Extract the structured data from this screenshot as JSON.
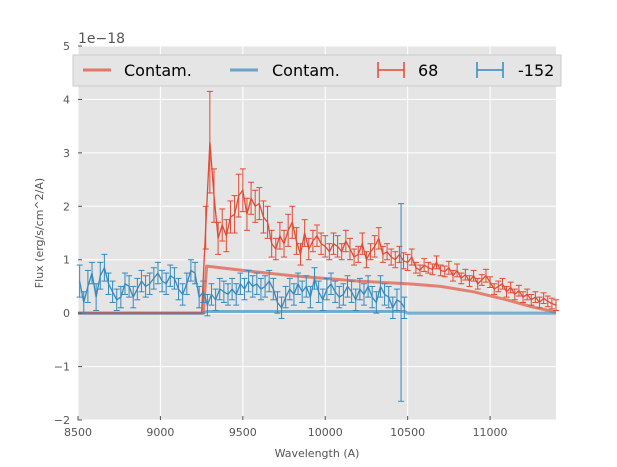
{
  "chart_data": {
    "type": "line",
    "title": "",
    "xlabel": "Wavelength (A)",
    "ylabel": "Flux (erg/s/cm^2/A)",
    "xlim": [
      8500,
      11400
    ],
    "ylim": [
      -2,
      5
    ],
    "x_ticks": [
      8500,
      9000,
      9500,
      10000,
      10500,
      11000
    ],
    "y_ticks": [
      -2,
      -1,
      0,
      1,
      2,
      3,
      4,
      5
    ],
    "x_tick_labels": [
      "8500",
      "9000",
      "9500",
      "10000",
      "10500",
      "11000"
    ],
    "y_tick_labels": [
      "−2",
      "−1",
      "0",
      "1",
      "2",
      "3",
      "4",
      "5"
    ],
    "y_offset_text": "1e−18",
    "grid": true,
    "legend_position": "top",
    "colors": {
      "red": "#e24a33",
      "blue": "#348abd",
      "background": "#e5e5e5"
    },
    "series": [
      {
        "name": "Contam.",
        "kind": "line",
        "color": "#e24a33",
        "x": [
          8500,
          9260,
          9280,
          9500,
          9800,
          10200,
          10500,
          10700,
          10900,
          11100,
          11250,
          11400
        ],
        "y": [
          0,
          0,
          0.88,
          0.8,
          0.7,
          0.6,
          0.55,
          0.5,
          0.4,
          0.25,
          0.12,
          0.02
        ]
      },
      {
        "name": "Contam.",
        "kind": "line",
        "color": "#348abd",
        "x": [
          8500,
          9260,
          9280,
          10480,
          10500,
          11400
        ],
        "y": [
          0,
          0,
          0.03,
          0.03,
          0,
          0
        ]
      },
      {
        "name": "68",
        "kind": "errorbar",
        "color": "#e24a33",
        "x": [
          8510,
          9250,
          9275,
          9300,
          9325,
          9350,
          9375,
          9400,
          9425,
          9450,
          9475,
          9500,
          9525,
          9550,
          9575,
          9600,
          9625,
          9650,
          9675,
          9700,
          9725,
          9750,
          9775,
          9800,
          9825,
          9850,
          9875,
          9900,
          9925,
          9950,
          9975,
          10000,
          10025,
          10050,
          10075,
          10100,
          10125,
          10150,
          10175,
          10200,
          10225,
          10250,
          10275,
          10300,
          10325,
          10350,
          10375,
          10400,
          10425,
          10450,
          10475,
          10500,
          10525,
          10550,
          10575,
          10600,
          10625,
          10650,
          10675,
          10700,
          10725,
          10750,
          10775,
          10800,
          10825,
          10850,
          10875,
          10900,
          10925,
          10950,
          10975,
          11000,
          11025,
          11050,
          11075,
          11100,
          11125,
          11150,
          11175,
          11200,
          11225,
          11250,
          11275,
          11300,
          11325,
          11350,
          11375,
          11400
        ],
        "y": [
          0,
          0,
          1.6,
          3.2,
          2.2,
          1.4,
          1.65,
          1.45,
          1.8,
          1.85,
          2.2,
          2.3,
          1.85,
          2.15,
          2.0,
          2.05,
          1.8,
          1.7,
          1.3,
          1.2,
          1.45,
          1.3,
          1.55,
          1.7,
          1.35,
          1.1,
          1.5,
          1.2,
          1.35,
          1.45,
          1.3,
          1.25,
          1.15,
          1.3,
          1.25,
          1.15,
          1.35,
          1.2,
          1.05,
          1.1,
          1.3,
          1.0,
          1.15,
          1.25,
          1.4,
          1.1,
          1.15,
          1.05,
          1.0,
          1.1,
          0.98,
          0.95,
          1.05,
          0.85,
          0.8,
          0.9,
          0.85,
          0.82,
          0.95,
          0.8,
          0.78,
          0.85,
          0.7,
          0.8,
          0.65,
          0.72,
          0.6,
          0.7,
          0.55,
          0.62,
          0.7,
          0.58,
          0.45,
          0.5,
          0.55,
          0.4,
          0.48,
          0.35,
          0.42,
          0.3,
          0.35,
          0.25,
          0.3,
          0.2,
          0.28,
          0.22,
          0.18,
          0.15
        ],
        "yerr": [
          0,
          0,
          0.4,
          0.95,
          0.5,
          0.3,
          0.3,
          0.3,
          0.3,
          0.35,
          0.4,
          0.4,
          0.3,
          0.3,
          0.3,
          0.3,
          0.3,
          0.3,
          0.25,
          0.2,
          0.25,
          0.25,
          0.3,
          0.3,
          0.25,
          0.2,
          0.25,
          0.2,
          0.2,
          0.2,
          0.2,
          0.2,
          0.15,
          0.2,
          0.2,
          0.15,
          0.2,
          0.2,
          0.15,
          0.15,
          0.2,
          0.15,
          0.15,
          0.2,
          0.2,
          0.15,
          0.15,
          0.15,
          0.15,
          0.15,
          0.15,
          0.15,
          0.15,
          0.1,
          0.1,
          0.12,
          0.1,
          0.1,
          0.12,
          0.1,
          0.1,
          0.12,
          0.1,
          0.12,
          0.1,
          0.1,
          0.1,
          0.1,
          0.1,
          0.1,
          0.12,
          0.1,
          0.1,
          0.1,
          0.1,
          0.1,
          0.1,
          0.1,
          0.1,
          0.1,
          0.1,
          0.1,
          0.1,
          0.1,
          0.1,
          0.1,
          0.1,
          0.1
        ]
      },
      {
        "name": "-152",
        "kind": "errorbar",
        "color": "#348abd",
        "x": [
          8510,
          8535,
          8560,
          8585,
          8610,
          8635,
          8660,
          8685,
          8710,
          8735,
          8760,
          8785,
          8810,
          8835,
          8860,
          8885,
          8910,
          8935,
          8960,
          8985,
          9010,
          9035,
          9060,
          9085,
          9110,
          9135,
          9160,
          9185,
          9210,
          9235,
          9260,
          9285,
          9310,
          9335,
          9360,
          9385,
          9410,
          9435,
          9460,
          9485,
          9510,
          9535,
          9560,
          9585,
          9610,
          9635,
          9660,
          9685,
          9710,
          9735,
          9760,
          9785,
          9810,
          9835,
          9860,
          9885,
          9910,
          9935,
          9960,
          9985,
          10010,
          10035,
          10060,
          10085,
          10110,
          10135,
          10160,
          10185,
          10210,
          10235,
          10260,
          10285,
          10310,
          10335,
          10360,
          10385,
          10410,
          10435,
          10460,
          10480
        ],
        "y": [
          0.6,
          0.2,
          0.5,
          0.75,
          0.3,
          0.7,
          0.85,
          0.55,
          0.4,
          0.25,
          0.3,
          0.55,
          0.5,
          0.3,
          0.45,
          0.6,
          0.5,
          0.55,
          0.65,
          0.75,
          0.6,
          0.55,
          0.7,
          0.65,
          0.45,
          0.35,
          0.55,
          0.8,
          0.75,
          0.3,
          0.4,
          0.15,
          0.35,
          0.25,
          0.45,
          0.4,
          0.35,
          0.45,
          0.35,
          0.55,
          0.45,
          0.6,
          0.5,
          0.55,
          0.45,
          0.5,
          0.6,
          0.45,
          0.2,
          0.1,
          0.3,
          0.45,
          0.35,
          0.55,
          0.4,
          0.5,
          0.3,
          0.65,
          0.4,
          0.25,
          0.45,
          0.55,
          0.4,
          0.3,
          0.35,
          0.5,
          0.4,
          0.25,
          0.45,
          0.35,
          0.5,
          0.3,
          0.2,
          0.5,
          0.35,
          0.3,
          0.1,
          0.25,
          0.2,
          0.1
        ],
        "yerr": [
          0.3,
          0.2,
          0.3,
          0.2,
          0.25,
          0.25,
          0.25,
          0.2,
          0.2,
          0.2,
          0.2,
          0.2,
          0.2,
          0.2,
          0.2,
          0.2,
          0.2,
          0.2,
          0.2,
          0.2,
          0.2,
          0.2,
          0.2,
          0.2,
          0.2,
          0.2,
          0.2,
          0.2,
          0.2,
          0.2,
          0.2,
          0.2,
          0.2,
          0.2,
          0.2,
          0.2,
          0.2,
          0.2,
          0.2,
          0.2,
          0.2,
          0.2,
          0.2,
          0.2,
          0.2,
          0.2,
          0.2,
          0.2,
          0.2,
          0.2,
          0.2,
          0.2,
          0.2,
          0.2,
          0.2,
          0.2,
          0.2,
          0.2,
          0.2,
          0.2,
          0.2,
          0.2,
          0.2,
          0.2,
          0.2,
          0.2,
          0.2,
          0.2,
          0.2,
          0.2,
          0.2,
          0.2,
          0.2,
          0.2,
          0.2,
          0.2,
          0.2,
          0.2,
          1.85,
          0.2
        ]
      }
    ]
  }
}
